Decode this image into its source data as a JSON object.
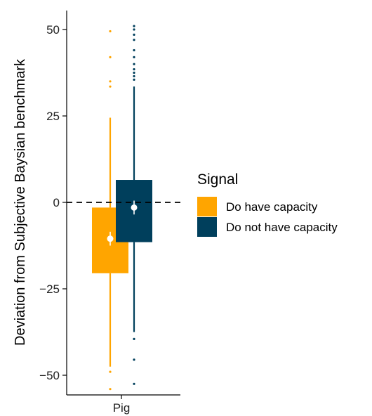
{
  "chart_data": {
    "type": "boxplot",
    "ylabel": "Deviation from Subjective Baysian benchmark",
    "xlabel": "",
    "categories": [
      "Pig"
    ],
    "ylim": [
      -55,
      55
    ],
    "yticks": [
      -50,
      -25,
      0,
      25,
      50
    ],
    "ytick_labels": [
      "−50",
      "−25",
      "0",
      "25",
      "50"
    ],
    "reference_line": {
      "y": 0,
      "style": "dashed"
    },
    "legend": {
      "title": "Signal",
      "placement": "right"
    },
    "series": [
      {
        "name": "Do have capacity",
        "color": "#FFA500",
        "category": "Pig",
        "q1": -20.5,
        "median": -10.5,
        "q3": -1.5,
        "whisker_low": -47.5,
        "whisker_high": 24.5,
        "mean": -10.5,
        "mean_ci": [
          -12.5,
          -8.5
        ],
        "outliers": [
          -49,
          -54,
          33.5,
          35,
          42,
          49.5
        ]
      },
      {
        "name": "Do not have capacity",
        "color": "#003F5C",
        "category": "Pig",
        "q1": -11.5,
        "median": -1.5,
        "q3": 6.5,
        "whisker_low": -37.5,
        "whisker_high": 33.5,
        "mean": -1.5,
        "mean_ci": [
          -3.5,
          0.5
        ],
        "outliers": [
          -39.5,
          -45.5,
          -52.5,
          35.5,
          36.5,
          37.5,
          38.5,
          40,
          42,
          44,
          47,
          48.5,
          50,
          51
        ]
      }
    ]
  }
}
